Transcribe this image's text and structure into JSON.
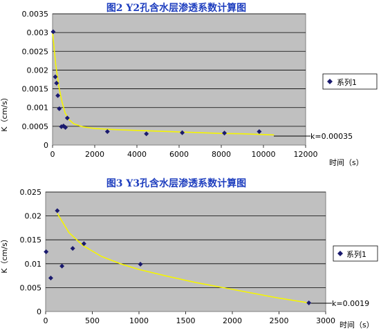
{
  "chart_data": [
    {
      "type": "scatter",
      "title": "图2   Y2孔含水层渗透系数计算图",
      "xlabel": "时间（s）",
      "ylabel": "K（cm/s）",
      "xlim": [
        0,
        12000
      ],
      "ylim": [
        0,
        0.0035
      ],
      "xticks": [
        "0",
        "2000",
        "4000",
        "6000",
        "8000",
        "10000",
        "12000"
      ],
      "yticks": [
        "0",
        "0.0005",
        "0.001",
        "0.0015",
        "0.002",
        "0.0025",
        "0.003",
        "0.0035"
      ],
      "grid": true,
      "legend_position": "right",
      "series": [
        {
          "name": "系列1",
          "x": [
            30,
            130,
            190,
            250,
            320,
            420,
            520,
            610,
            700,
            2600,
            4450,
            6150,
            8150,
            9800
          ],
          "y": [
            0.00302,
            0.00182,
            0.00165,
            0.00132,
            0.00097,
            0.00049,
            0.00051,
            0.00047,
            0.00072,
            0.00036,
            0.0003,
            0.00033,
            0.00032,
            0.00036
          ]
        }
      ],
      "trend": {
        "x": [
          0,
          150,
          300,
          450,
          600,
          800,
          1000,
          1400,
          2000,
          3000,
          4000,
          5000,
          6000,
          7000,
          8000,
          9000,
          10000,
          10500
        ],
        "y": [
          0.003,
          0.00215,
          0.00155,
          0.00115,
          0.00085,
          0.00067,
          0.00057,
          0.00049,
          0.00044,
          0.00041,
          0.00039,
          0.00037,
          0.00035,
          0.00033,
          0.00031,
          0.0003,
          0.00028,
          0.00027
        ]
      },
      "annotation": "k=0.00035",
      "colors": {
        "marker": "#1a1a6e",
        "trend": "#f5f500",
        "plot_bg": "#c0c0c0"
      }
    },
    {
      "type": "scatter",
      "title": "图3   Y3孔含水层渗透系数计算图",
      "xlabel": "时间（s）",
      "ylabel": "K（cm/s）",
      "xlim": [
        0,
        3000
      ],
      "ylim": [
        0,
        0.025
      ],
      "xticks": [
        "0",
        "500",
        "1000",
        "1500",
        "2000",
        "2500",
        "3000"
      ],
      "yticks": [
        "0",
        "0.005",
        "0.01",
        "0.015",
        "0.02",
        "0.025"
      ],
      "grid": true,
      "legend_position": "right",
      "series": [
        {
          "name": "系列1",
          "x": [
            5,
            55,
            125,
            175,
            290,
            410,
            1015,
            2820
          ],
          "y": [
            0.0125,
            0.007,
            0.0211,
            0.0095,
            0.0132,
            0.0142,
            0.0099,
            0.0018
          ]
        }
      ],
      "trend": {
        "x": [
          125,
          250,
          400,
          600,
          800,
          1000,
          1300,
          1600,
          1900,
          2200,
          2500,
          2820
        ],
        "y": [
          0.0205,
          0.0165,
          0.0138,
          0.0115,
          0.01,
          0.0088,
          0.0074,
          0.0061,
          0.005,
          0.0039,
          0.0028,
          0.0018
        ]
      },
      "annotation": "k=0.0019",
      "colors": {
        "marker": "#1a1a6e",
        "trend": "#f5f500",
        "plot_bg": "#c0c0c0"
      }
    }
  ]
}
